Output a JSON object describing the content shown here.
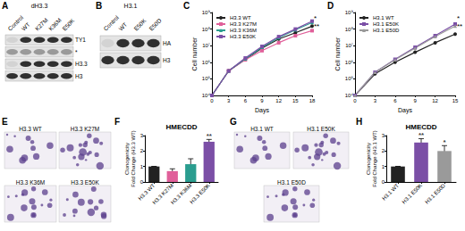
{
  "chart_data": [
    {
      "type": "line",
      "panel_label": "C",
      "x_label": "Days",
      "y_label": "Cell number",
      "x": [
        0,
        3,
        6,
        9,
        12,
        15,
        18
      ],
      "xlim": [
        0,
        18
      ],
      "xticks": [
        0,
        3,
        6,
        9,
        12,
        15,
        18
      ],
      "log": "y",
      "ylim": [
        10000,
        1000000000
      ],
      "yticks": [
        {
          "value": 10000,
          "label": "10⁴"
        },
        {
          "value": 100000,
          "label": "10⁵"
        },
        {
          "value": 1000000,
          "label": "10⁶"
        },
        {
          "value": 10000000,
          "label": "10⁷"
        },
        {
          "value": 100000000,
          "label": "10⁸"
        },
        {
          "value": 1000000000,
          "label": "10⁹"
        }
      ],
      "grid": false,
      "legend": "upper left",
      "series": [
        {
          "name": "H3.3 WT",
          "color": "#222222",
          "marker": "circle",
          "values": [
            10000,
            300000,
            1500000,
            7000000,
            25000000,
            60000000,
            150000000
          ]
        },
        {
          "name": "H3.3 K27M",
          "color": "#e0609a",
          "marker": "square",
          "values": [
            10000,
            300000,
            1400000,
            5000000,
            15000000,
            40000000,
            80000000
          ]
        },
        {
          "name": "H3.3 K36M",
          "color": "#2a9d8f",
          "marker": "triangle",
          "values": [
            10000,
            300000,
            1600000,
            8000000,
            30000000,
            90000000,
            250000000
          ]
        },
        {
          "name": "H3.3 E50K",
          "color": "#7b4fa6",
          "marker": "square",
          "values": [
            10000,
            300000,
            1800000,
            9000000,
            35000000,
            100000000,
            300000000
          ]
        }
      ],
      "annotations": [
        "*",
        "**"
      ]
    },
    {
      "type": "line",
      "panel_label": "D",
      "x_label": "Days",
      "y_label": "Cell number",
      "x": [
        0,
        3,
        6,
        9,
        12,
        15
      ],
      "xlim": [
        0,
        15
      ],
      "xticks": [
        0,
        3,
        6,
        9,
        12,
        15
      ],
      "log": "y",
      "ylim": [
        10000,
        1000000000
      ],
      "yticks": [
        {
          "value": 10000,
          "label": "10⁴"
        },
        {
          "value": 100000,
          "label": "10⁵"
        },
        {
          "value": 1000000,
          "label": "10⁶"
        },
        {
          "value": 10000000,
          "label": "10⁷"
        },
        {
          "value": 100000000,
          "label": "10⁸"
        },
        {
          "value": 1000000000,
          "label": "10⁹"
        }
      ],
      "grid": false,
      "legend": "upper left",
      "series": [
        {
          "name": "H3.1 WT",
          "color": "#222222",
          "marker": "circle",
          "values": [
            10000,
            200000,
            1000000,
            4000000,
            15000000,
            50000000
          ]
        },
        {
          "name": "H3.1 E50K",
          "color": "#7b4fa6",
          "marker": "square",
          "values": [
            10000,
            250000,
            1500000,
            8000000,
            40000000,
            200000000
          ]
        },
        {
          "name": "H3.1 E50D",
          "color": "#9a9a9a",
          "marker": "triangle",
          "values": [
            10000,
            250000,
            1400000,
            7000000,
            35000000,
            150000000
          ]
        }
      ],
      "annotations": [
        "*",
        "**"
      ]
    },
    {
      "type": "bar",
      "panel_label": "F",
      "title": "HMECDD",
      "y_label": "Clonogenicity\nFold Change (H3.3 WT)",
      "categories": [
        "H3.3 WT",
        "H3.3 K27M",
        "H3.3 K36M",
        "H3.3 E50K"
      ],
      "values": [
        1,
        0.7,
        1.15,
        2.6
      ],
      "errors": [
        0,
        0.15,
        0.35,
        0.15
      ],
      "colors": [
        "#222222",
        "#e0609a",
        "#2a9d8f",
        "#7b4fa6"
      ],
      "ylim": [
        0,
        3
      ],
      "yticks": [
        0,
        1,
        2,
        3
      ],
      "grid": false,
      "annotations": [
        {
          "category": "H3.3 E50K",
          "text": "**"
        }
      ]
    },
    {
      "type": "bar",
      "panel_label": "H",
      "title": "HMECDD",
      "y_label": "Clonogenicity\nFold Change (H3.1 WT)",
      "categories": [
        "H3.1 WT",
        "H3.1 E50K",
        "H3.1 E50D"
      ],
      "values": [
        1,
        2.55,
        2.0
      ],
      "errors": [
        0,
        0.25,
        0.35
      ],
      "colors": [
        "#222222",
        "#7b4fa6",
        "#9a9a9a"
      ],
      "ylim": [
        0,
        3
      ],
      "yticks": [
        0,
        1,
        2,
        3
      ],
      "grid": false,
      "annotations": [
        {
          "category": "H3.1 E50K",
          "text": "**"
        },
        {
          "category": "H3.1 E50D",
          "text": "*"
        }
      ]
    }
  ],
  "blots": [
    {
      "panel_label": "A",
      "title": "dH3.3",
      "lanes": [
        "Control",
        "WT",
        "K27M",
        "K36M",
        "E50K"
      ],
      "rows": [
        "TY1",
        "*",
        "H3.3",
        "H3"
      ]
    },
    {
      "panel_label": "B",
      "title": "H3.1",
      "lanes": [
        "Control",
        "WT",
        "E50K",
        "E50D"
      ],
      "rows": [
        "HA",
        "H3"
      ]
    }
  ],
  "colony_images": [
    {
      "panel_label": "E",
      "labels": [
        "H3.3 WT",
        "H3.3 K27M",
        "H3.3 K36M",
        "H3.3 E50K"
      ]
    },
    {
      "panel_label": "G",
      "labels": [
        "H3.1 WT",
        "H3.1 E50K",
        "H3.1 E50D"
      ]
    }
  ]
}
